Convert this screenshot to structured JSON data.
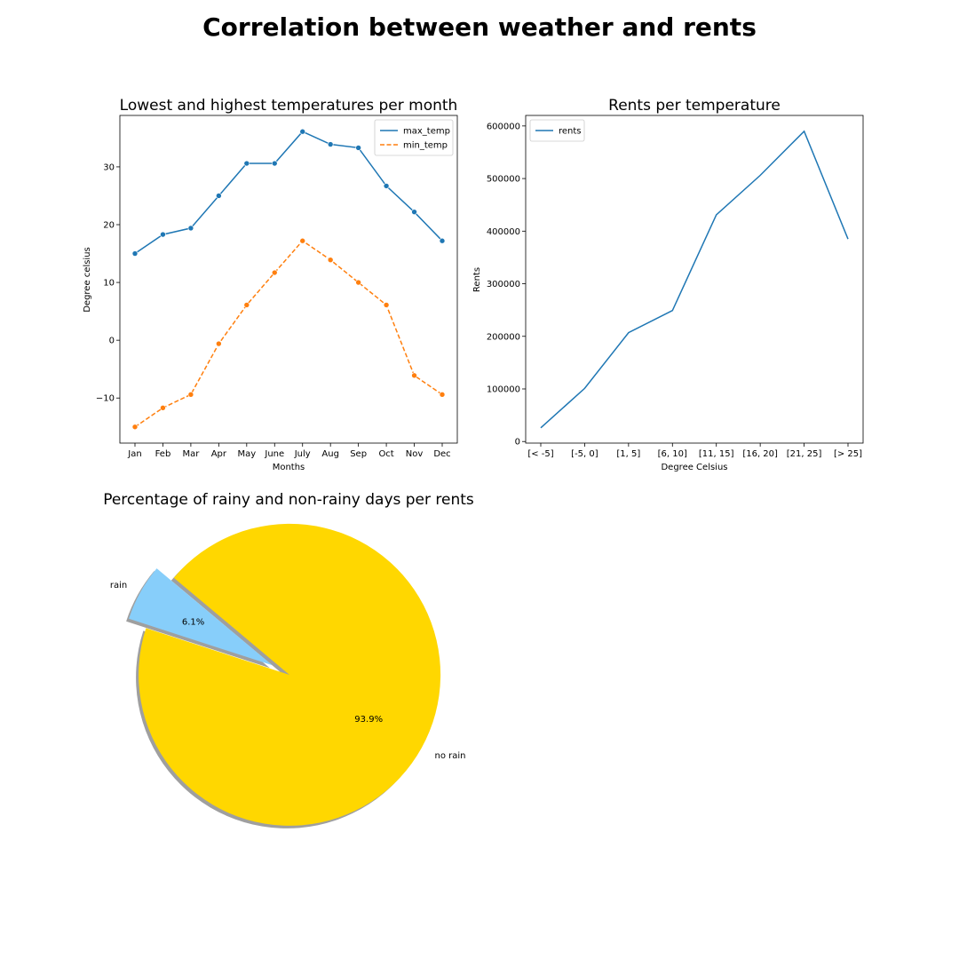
{
  "page": {
    "title": "Correlation between weather and rents"
  },
  "chart_data": [
    {
      "type": "line",
      "title": "Lowest and highest temperatures per month",
      "xlabel": "Months",
      "ylabel": "Degree celsius",
      "categories": [
        "Jan",
        "Feb",
        "Mar",
        "Apr",
        "May",
        "June",
        "July",
        "Aug",
        "Sep",
        "Oct",
        "Nov",
        "Dec"
      ],
      "ylim": [
        -17.8,
        38.9
      ],
      "yticks": [
        -10,
        0,
        10,
        20,
        30
      ],
      "grid": false,
      "legend_position": "top-right",
      "series": [
        {
          "name": "max_temp",
          "style": "solid",
          "markers": true,
          "color": "#1f77b4",
          "values": [
            15.0,
            18.3,
            19.4,
            25.0,
            30.6,
            30.6,
            36.1,
            33.9,
            33.3,
            26.7,
            22.2,
            17.2
          ]
        },
        {
          "name": "min_temp",
          "style": "dashed",
          "markers": true,
          "color": "#ff7f0e",
          "values": [
            -15.0,
            -11.7,
            -9.4,
            -0.6,
            6.1,
            11.7,
            17.2,
            13.9,
            10.0,
            6.1,
            -6.1,
            -9.4
          ]
        }
      ]
    },
    {
      "type": "line",
      "title": "Rents per temperature",
      "xlabel": "Degree Celsius",
      "ylabel": "Rents",
      "categories": [
        "[< -5]",
        "[-5, 0]",
        "[1, 5]",
        "[6, 10]",
        "[11, 15]",
        "[16, 20]",
        "[21, 25]",
        "[> 25]"
      ],
      "ylim": [
        -3000,
        620000
      ],
      "yticks": [
        0,
        100000,
        200000,
        300000,
        400000,
        500000,
        600000
      ],
      "grid": false,
      "legend_position": "top-left",
      "series": [
        {
          "name": "rents",
          "style": "solid",
          "markers": false,
          "color": "#1f77b4",
          "values": [
            26000,
            101000,
            207000,
            249000,
            431000,
            506000,
            590000,
            385000
          ]
        }
      ]
    },
    {
      "type": "pie",
      "title": "Percentage of rainy and non-rainy days per rents",
      "shadow": true,
      "slices": [
        {
          "label": "rain",
          "value": 6.1,
          "pct_label": "6.1%",
          "color": "#87cefa",
          "exploded": true
        },
        {
          "label": "no rain",
          "value": 93.9,
          "pct_label": "93.9%",
          "color": "#ffd700",
          "exploded": false
        }
      ]
    }
  ]
}
